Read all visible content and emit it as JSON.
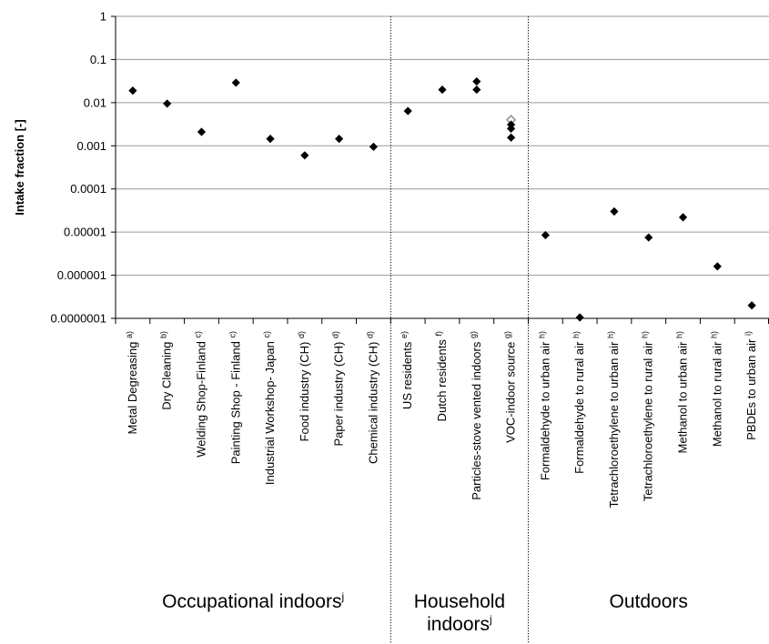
{
  "chart_data": {
    "type": "scatter",
    "ylabel": "Intake fraction [-]",
    "yscale": "log",
    "ylim": [
      1e-07,
      1
    ],
    "yticks": [
      "1",
      "0.1",
      "0.01",
      "0.001",
      "0.0001",
      "0.00001",
      "0.000001",
      "0.0000001"
    ],
    "grid": "horizontal",
    "categories": [
      {
        "label": "Metal Degreasing",
        "note": "a)"
      },
      {
        "label": "Dry Cleaning",
        "note": "b)"
      },
      {
        "label": "Welding Shop-Finland",
        "note": "c)"
      },
      {
        "label": "Painting Shop - Finland",
        "note": "c)"
      },
      {
        "label": "Industrial Workshop- Japan",
        "note": "c)"
      },
      {
        "label": "Food industry (CH)",
        "note": "d)"
      },
      {
        "label": "Paper industry (CH)",
        "note": "d)"
      },
      {
        "label": "Chemical industry (CH)",
        "note": "d)"
      },
      {
        "label": "US residents",
        "note": "e)"
      },
      {
        "label": "Dutch residents",
        "note": "f)"
      },
      {
        "label": "Particles-stove vented indoors",
        "note": "g)"
      },
      {
        "label": "VOC-indoor source",
        "note": "g)"
      },
      {
        "label": "Formaldehyde to urban air",
        "note": "h)"
      },
      {
        "label": "Formaldehyde to rural air",
        "note": "h)"
      },
      {
        "label": "Tetrachloroethylene to urban air",
        "note": "h)"
      },
      {
        "label": "Tetrachloroethylene to rural air",
        "note": "h)"
      },
      {
        "label": "Methanol to urban air",
        "note": "h)"
      },
      {
        "label": "Methanol to rural air",
        "note": "h)"
      },
      {
        "label": "PBDEs to urban air",
        "note": "i)"
      }
    ],
    "points": [
      {
        "category": 0,
        "y": 0.019
      },
      {
        "category": 1,
        "y": 0.0095
      },
      {
        "category": 2,
        "y": 0.0021
      },
      {
        "category": 3,
        "y": 0.029
      },
      {
        "category": 4,
        "y": 0.00145
      },
      {
        "category": 5,
        "y": 0.0006
      },
      {
        "category": 6,
        "y": 0.00145
      },
      {
        "category": 7,
        "y": 0.00095
      },
      {
        "category": 8,
        "y": 0.0064
      },
      {
        "category": 9,
        "y": 0.02
      },
      {
        "category": 10,
        "y": 0.031
      },
      {
        "category": 10,
        "y": 0.02
      },
      {
        "category": 11,
        "y": 0.004,
        "style": "open"
      },
      {
        "category": 11,
        "y": 0.0031
      },
      {
        "category": 11,
        "y": 0.0025
      },
      {
        "category": 11,
        "y": 0.00155
      },
      {
        "category": 12,
        "y": 8.5e-06
      },
      {
        "category": 13,
        "y": 1.05e-07
      },
      {
        "category": 14,
        "y": 3e-05
      },
      {
        "category": 15,
        "y": 7.5e-06
      },
      {
        "category": 16,
        "y": 2.2e-05
      },
      {
        "category": 17,
        "y": 1.6e-06
      },
      {
        "category": 18,
        "y": 2e-07
      }
    ],
    "groups": [
      {
        "label": "Occupational indoors",
        "note": "j",
        "from": 0,
        "to": 7
      },
      {
        "label": "Household indoors",
        "note": "j",
        "from": 8,
        "to": 11
      },
      {
        "label": "Outdoors",
        "note": "",
        "from": 12,
        "to": 18
      }
    ],
    "colors": {
      "marker": "#000000",
      "marker_open": "#888888",
      "grid": "#9a9a9a",
      "axis": "#000000"
    }
  }
}
